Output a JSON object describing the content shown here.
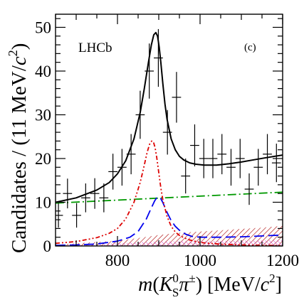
{
  "chart_data": {
    "type": "scatter",
    "experiment_label": "LHCb",
    "panel_label": "(c)",
    "xlabel": {
      "m": "m",
      "open": "(",
      "K": "K",
      "K_sup": "0",
      "K_sub": "S",
      "pi": "π",
      "pi_sup": "±",
      "close": ") [MeV/",
      "c": "c",
      "c_sup": "2",
      "end": "]"
    },
    "ylabel": {
      "text": "Candidates / (11 MeV/",
      "c": "c",
      "c_sup": "2",
      "end": ")"
    },
    "xlim": [
      650,
      1200
    ],
    "ylim": [
      0,
      53
    ],
    "xticks": [
      800,
      1000,
      1200
    ],
    "yticks": [
      0,
      10,
      20,
      30,
      40,
      50
    ],
    "data_points": [
      {
        "x": 657,
        "y": 7,
        "yerr": 2.8
      },
      {
        "x": 679,
        "y": 12,
        "yerr": 3.4
      },
      {
        "x": 701,
        "y": 7,
        "yerr": 2.8
      },
      {
        "x": 723,
        "y": 11,
        "yerr": 3.3
      },
      {
        "x": 745,
        "y": 12,
        "yerr": 3.5
      },
      {
        "x": 767,
        "y": 11,
        "yerr": 3.3
      },
      {
        "x": 789,
        "y": 17,
        "yerr": 4.1
      },
      {
        "x": 811,
        "y": 18,
        "yerr": 4.2
      },
      {
        "x": 833,
        "y": 21,
        "yerr": 4.6
      },
      {
        "x": 855,
        "y": 30,
        "yerr": 5.5
      },
      {
        "x": 877,
        "y": 40,
        "yerr": 6.3
      },
      {
        "x": 899,
        "y": 43,
        "yerr": 6.6
      },
      {
        "x": 921,
        "y": 26,
        "yerr": 5.1
      },
      {
        "x": 943,
        "y": 34,
        "yerr": 5.8
      },
      {
        "x": 965,
        "y": 16,
        "yerr": 4.0
      },
      {
        "x": 987,
        "y": 23,
        "yerr": 4.8
      },
      {
        "x": 1009,
        "y": 20,
        "yerr": 4.5
      },
      {
        "x": 1031,
        "y": 20,
        "yerr": 4.5
      },
      {
        "x": 1053,
        "y": 21,
        "yerr": 4.6
      },
      {
        "x": 1075,
        "y": 18,
        "yerr": 4.2
      },
      {
        "x": 1097,
        "y": 20,
        "yerr": 4.5
      },
      {
        "x": 1119,
        "y": 13,
        "yerr": 3.6
      },
      {
        "x": 1141,
        "y": 18,
        "yerr": 4.2
      },
      {
        "x": 1163,
        "y": 21,
        "yerr": 4.6
      },
      {
        "x": 1185,
        "y": 19,
        "yerr": 4.4
      }
    ],
    "curves": [
      {
        "id": "total-fit",
        "color": "#000000",
        "style": "solid",
        "x": [
          650,
          700,
          750,
          780,
          800,
          820,
          840,
          855,
          865,
          875,
          882,
          888,
          893,
          897,
          901,
          905,
          910,
          915,
          920,
          930,
          940,
          950,
          960,
          975,
          990,
          1010,
          1040,
          1070,
          1100,
          1130,
          1160,
          1200
        ],
        "y": [
          10.0,
          11.0,
          12.8,
          14.5,
          16.5,
          19.5,
          24.5,
          30.5,
          36.0,
          42.0,
          46.0,
          48.3,
          48.8,
          48.0,
          45.5,
          42.0,
          37.0,
          32.5,
          29.0,
          24.5,
          22.0,
          20.5,
          19.7,
          19.0,
          18.7,
          18.5,
          18.5,
          18.8,
          19.2,
          19.7,
          20.2,
          20.8
        ]
      },
      {
        "id": "red-dash-dot-component",
        "color": "#dd0000",
        "style": "dashdotdot",
        "x": [
          650,
          700,
          750,
          780,
          800,
          820,
          840,
          855,
          865,
          872,
          878,
          883,
          887,
          891,
          895,
          900,
          905,
          910,
          920,
          930,
          940,
          950,
          970,
          1000,
          1050,
          1100,
          1150,
          1200
        ],
        "y": [
          0.6,
          1.0,
          1.9,
          2.9,
          4.0,
          6.2,
          10.0,
          14.5,
          18.5,
          21.5,
          23.3,
          24.0,
          23.8,
          22.5,
          20.3,
          16.8,
          13.3,
          10.5,
          6.8,
          4.5,
          3.2,
          2.4,
          1.5,
          0.8,
          0.4,
          0.25,
          0.15,
          0.1
        ]
      },
      {
        "id": "blue-dashed-component",
        "color": "#0000ee",
        "style": "dashed",
        "x": [
          650,
          700,
          750,
          800,
          830,
          850,
          870,
          880,
          890,
          895,
          900,
          905,
          910,
          920,
          930,
          940,
          950,
          965,
          980,
          1000,
          1050,
          1100,
          1150,
          1200
        ],
        "y": [
          0.15,
          0.25,
          0.45,
          1.1,
          2.0,
          3.3,
          6.2,
          8.3,
          10.3,
          11.0,
          11.2,
          10.8,
          9.9,
          7.7,
          5.8,
          4.5,
          3.6,
          2.7,
          2.2,
          2.0,
          2.0,
          2.1,
          2.3,
          2.5
        ]
      },
      {
        "id": "green-dash-dot-background",
        "color": "#009900",
        "style": "dashdot",
        "x": [
          650,
          1200
        ],
        "y": [
          9.8,
          12.3
        ]
      }
    ],
    "hatched_bands": [
      {
        "id": "red-hatched-band",
        "color": "#aa0000",
        "x": [
          650,
          800,
          850,
          900,
          950,
          1000,
          1050,
          1100,
          1150,
          1200
        ],
        "y": [
          0.3,
          1.2,
          1.8,
          2.5,
          3.0,
          3.3,
          3.6,
          3.9,
          4.2,
          4.6
        ]
      },
      {
        "id": "magenta-hatched-band",
        "color": "#cc33cc",
        "x": [
          650,
          800,
          900,
          1000,
          1100,
          1200
        ],
        "y": [
          0.2,
          0.6,
          1.0,
          1.1,
          1.2,
          1.3
        ]
      }
    ]
  }
}
